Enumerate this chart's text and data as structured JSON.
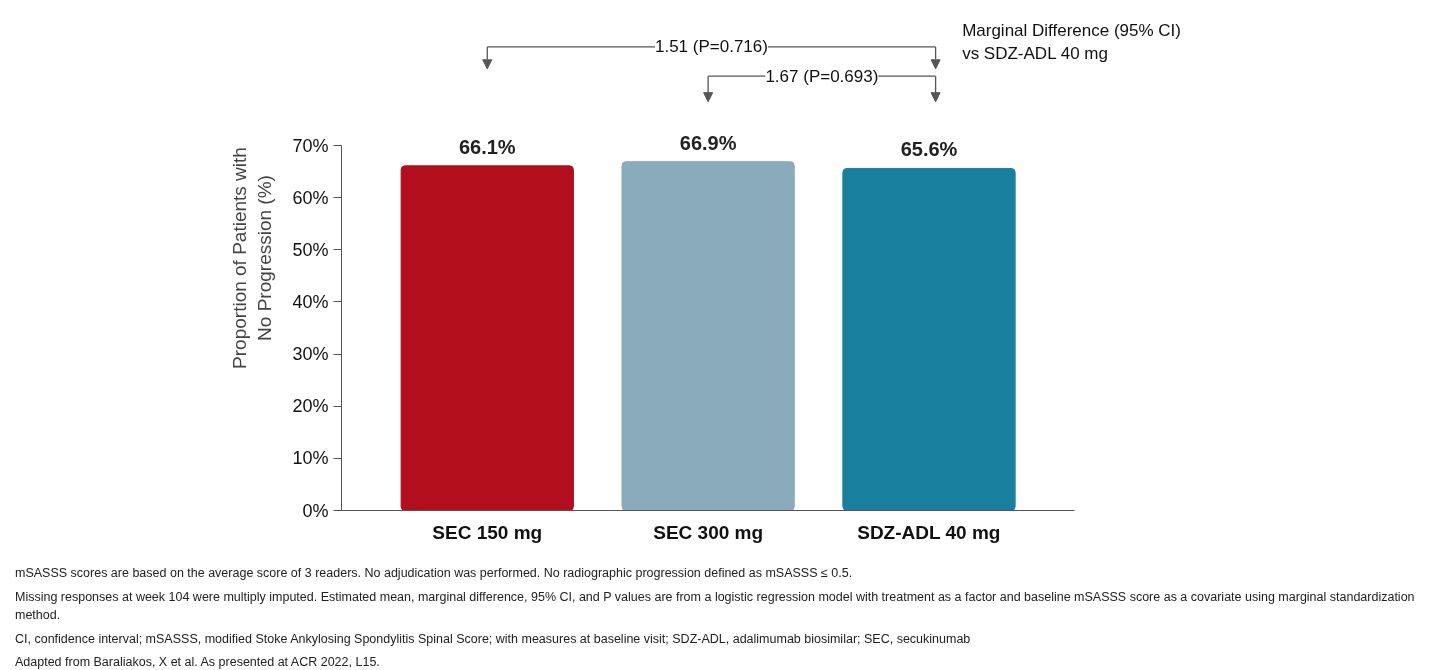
{
  "chart_data": {
    "type": "bar",
    "ylabel": "Proportion of Patients with\nNo Progression (%)",
    "categories": [
      "SEC 150 mg",
      "SEC 300 mg",
      "SDZ-ADL 40 mg"
    ],
    "values": [
      66.1,
      66.9,
      65.6
    ],
    "colors": [
      "#b30e1d",
      "#8aabbb",
      "#1a7f9e"
    ],
    "value_labels": [
      "66.1%",
      "66.9%",
      "65.6%"
    ],
    "ylim": [
      0,
      70
    ],
    "yticks": [
      {
        "value": 0,
        "label": "0%"
      },
      {
        "value": 10,
        "label": "10%"
      },
      {
        "value": 20,
        "label": "20%"
      },
      {
        "value": 30,
        "label": "30%"
      },
      {
        "value": 40,
        "label": "40%"
      },
      {
        "value": 50,
        "label": "50%"
      },
      {
        "value": 60,
        "label": "60%"
      },
      {
        "value": 70,
        "label": "70%"
      }
    ],
    "grid": false,
    "annotations": [
      "1.51 (P=0.716)",
      "1.67 (P=0.693)",
      "Marginal Difference (95% CI)\nvs SDZ-ADL 40 mg",
      "mSASSS scores are based on the average score of 3 readers. No adjudication was performed. No radiographic progression defined as mSASSS ≤ 0.5.",
      "Missing responses at week 104 were multiply imputed. Estimated mean, marginal difference, 95% CI, and P values are from a logistic regression model with treatment as a factor and baseline mSASSS score as a covariate using marginal standardization method.",
      "CI, confidence interval; mSASSS, modified Stoke Ankylosing Spondylitis Spinal Score; with measures at baseline visit; SDZ-ADL, adalimumab biosimilar; SEC, secukinumab",
      "Adapted from Baraliakos, X et al. As presented at ACR 2022, L15."
    ]
  }
}
